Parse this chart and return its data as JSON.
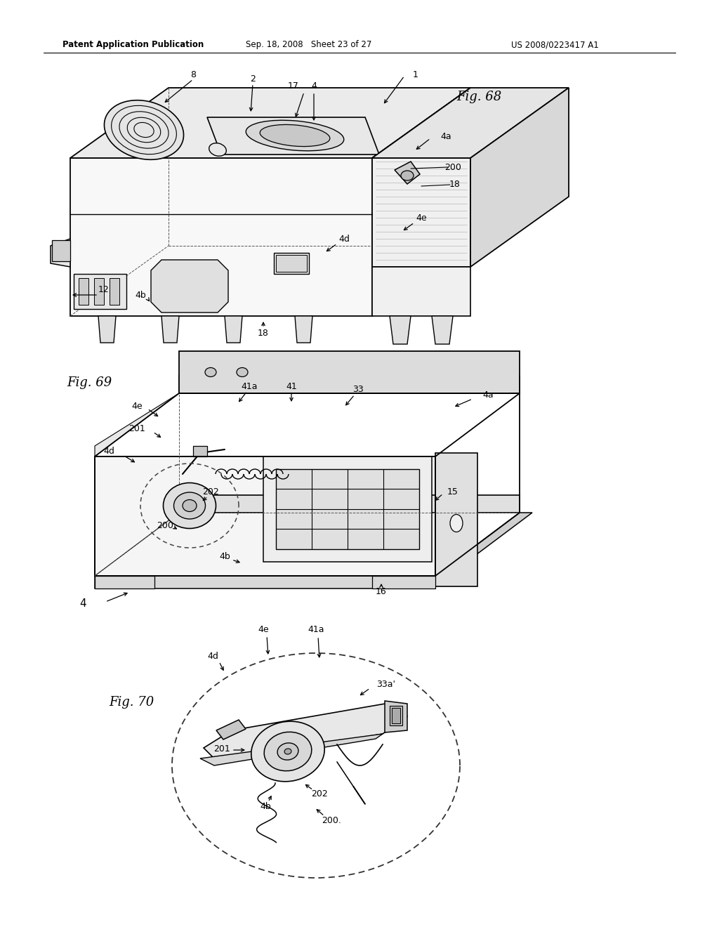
{
  "page_width": 10.24,
  "page_height": 13.2,
  "background_color": "#ffffff",
  "header_left": "Patent Application Publication",
  "header_mid": "Sep. 18, 2008   Sheet 23 of 27",
  "header_right": "US 2008/0223417 A1"
}
